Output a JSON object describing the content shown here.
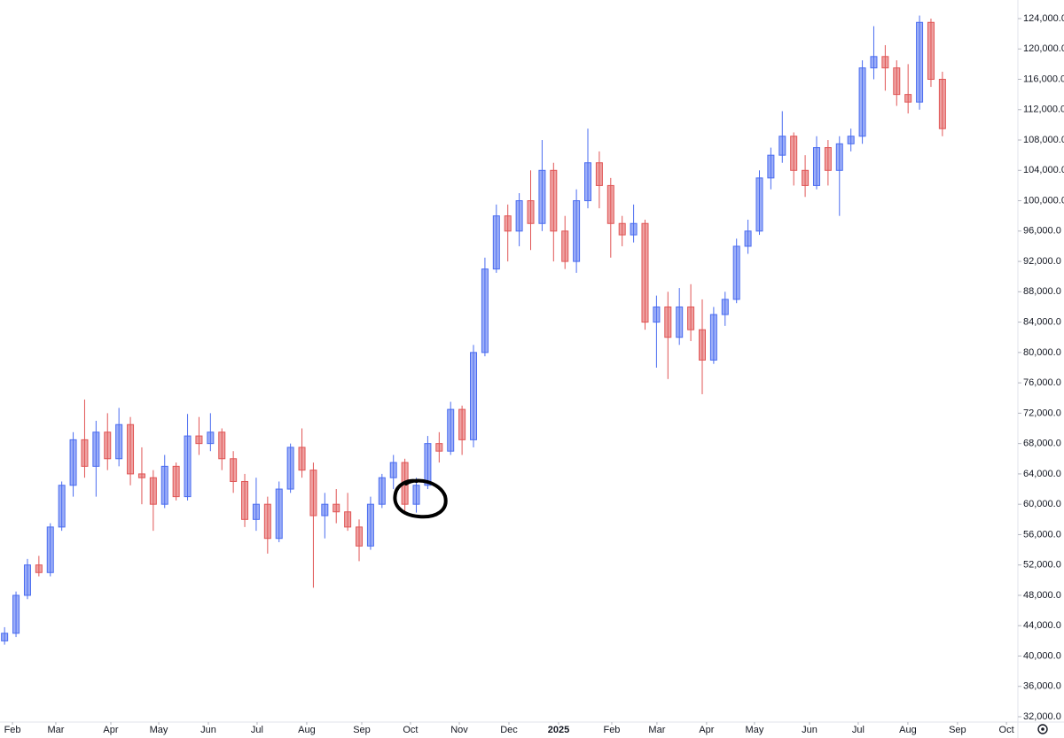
{
  "chart_data": {
    "type": "candlestick",
    "up_color": "#4a6cf0",
    "down_color": "#e05555",
    "xlim": [
      -0.4,
      88.6
    ],
    "ylim": [
      31300,
      126450
    ],
    "xticks": [
      {
        "value": 0.69,
        "label": "Feb"
      },
      {
        "value": 4.48,
        "label": "Mar"
      },
      {
        "value": 9.29,
        "label": "Apr"
      },
      {
        "value": 13.48,
        "label": "May"
      },
      {
        "value": 17.82,
        "label": "Jun"
      },
      {
        "value": 22.08,
        "label": "Jul"
      },
      {
        "value": 26.42,
        "label": "Aug"
      },
      {
        "value": 31.23,
        "label": "Sep"
      },
      {
        "value": 35.49,
        "label": "Oct"
      },
      {
        "value": 39.76,
        "label": "Nov"
      },
      {
        "value": 44.1,
        "label": "Dec"
      },
      {
        "value": 48.44,
        "label": "2025"
      },
      {
        "value": 53.09,
        "label": "Feb"
      },
      {
        "value": 57.04,
        "label": "Mar"
      },
      {
        "value": 61.38,
        "label": "Apr"
      },
      {
        "value": 65.57,
        "label": "May"
      },
      {
        "value": 70.38,
        "label": "Jun"
      },
      {
        "value": 74.64,
        "label": "Jul"
      },
      {
        "value": 78.98,
        "label": "Aug"
      },
      {
        "value": 83.32,
        "label": "Sep"
      },
      {
        "value": 87.6,
        "label": "Oct"
      }
    ],
    "yticks": [
      {
        "value": 32000,
        "label": "32,000.0"
      },
      {
        "value": 36000,
        "label": "36,000.0"
      },
      {
        "value": 40000,
        "label": "40,000.0"
      },
      {
        "value": 44000,
        "label": "44,000.0"
      },
      {
        "value": 48000,
        "label": "48,000.0"
      },
      {
        "value": 52000,
        "label": "52,000.0"
      },
      {
        "value": 56000,
        "label": "56,000.0"
      },
      {
        "value": 60000,
        "label": "60,000.0"
      },
      {
        "value": 64000,
        "label": "64,000.0"
      },
      {
        "value": 68000,
        "label": "68,000.0"
      },
      {
        "value": 72000,
        "label": "72,000.0"
      },
      {
        "value": 76000,
        "label": "76,000.0"
      },
      {
        "value": 80000,
        "label": "80,000.0"
      },
      {
        "value": 84000,
        "label": "84,000.0"
      },
      {
        "value": 88000,
        "label": "88,000.0"
      },
      {
        "value": 92000,
        "label": "92,000.0"
      },
      {
        "value": 96000,
        "label": "96,000.0"
      },
      {
        "value": 100000,
        "label": "100,000.0"
      },
      {
        "value": 104000,
        "label": "104,000.0"
      },
      {
        "value": 108000,
        "label": "108,000.0"
      },
      {
        "value": 112000,
        "label": "112,000.0"
      },
      {
        "value": 116000,
        "label": "116,000.0"
      },
      {
        "value": 120000,
        "label": "120,000.0"
      },
      {
        "value": 124000,
        "label": "124,000.0"
      }
    ],
    "x": [
      0,
      1,
      2,
      3,
      4,
      5,
      6,
      7,
      8,
      9,
      10,
      11,
      12,
      13,
      14,
      15,
      16,
      17,
      18,
      19,
      20,
      21,
      22,
      23,
      24,
      25,
      26,
      27,
      28,
      29,
      30,
      31,
      32,
      33,
      34,
      35,
      36,
      37,
      38,
      39,
      40,
      41,
      42,
      43,
      44,
      45,
      46,
      47,
      48,
      49,
      50,
      51,
      52,
      53,
      54,
      55,
      56,
      57,
      58,
      59,
      60,
      61,
      62,
      63,
      64,
      65,
      66,
      67,
      68,
      69,
      70,
      71,
      72,
      73,
      74,
      75,
      76,
      77,
      78,
      79,
      80,
      81,
      82
    ],
    "open": [
      42000,
      43000,
      48000,
      52000,
      51000,
      57000,
      62500,
      68500,
      65000,
      69500,
      66000,
      70500,
      64000,
      63500,
      60000,
      65000,
      61000,
      69000,
      68000,
      69500,
      66000,
      63000,
      58000,
      60000,
      55500,
      62000,
      67500,
      64500,
      58500,
      60000,
      59000,
      57000,
      54500,
      60000,
      63500,
      65500,
      60000,
      62500,
      68000,
      67000,
      72500,
      68500,
      80000,
      91000,
      98000,
      96000,
      100000,
      97000,
      104000,
      96000,
      92000,
      100000,
      105000,
      102000,
      97000,
      95500,
      97000,
      84000,
      86000,
      82000,
      86000,
      83000,
      79000,
      85000,
      87000,
      94000,
      96000,
      103000,
      106000,
      108500,
      104000,
      102000,
      107000,
      104000,
      107500,
      108500,
      117500,
      119000,
      117500,
      114000,
      113000,
      123500,
      116000
    ],
    "high": [
      43800,
      48500,
      52800,
      53200,
      57500,
      63000,
      69500,
      73800,
      71000,
      72000,
      72700,
      71500,
      67500,
      64500,
      66500,
      65500,
      71900,
      71500,
      72000,
      70000,
      67000,
      64000,
      63500,
      61000,
      63000,
      68000,
      70000,
      65500,
      61500,
      62000,
      61500,
      58000,
      61000,
      64000,
      66500,
      66000,
      63500,
      69000,
      69500,
      73500,
      73000,
      81000,
      92500,
      99500,
      99500,
      101000,
      104000,
      108000,
      105000,
      98000,
      101500,
      109500,
      106500,
      103000,
      98000,
      99500,
      97500,
      87500,
      88000,
      88500,
      89000,
      87000,
      86000,
      88000,
      95000,
      97500,
      104000,
      107000,
      111800,
      109000,
      106000,
      108500,
      108000,
      108500,
      109500,
      118500,
      123000,
      120500,
      118500,
      118000,
      124400,
      124000,
      117000
    ],
    "low": [
      41500,
      42500,
      47500,
      50500,
      50500,
      56500,
      61000,
      63500,
      61000,
      64500,
      65000,
      62500,
      60000,
      56500,
      59500,
      60500,
      60500,
      66500,
      67000,
      64500,
      61500,
      57000,
      56500,
      53500,
      55000,
      61500,
      63500,
      49000,
      55500,
      57500,
      56500,
      52500,
      54000,
      59500,
      62000,
      58900,
      58900,
      62000,
      65500,
      66500,
      66500,
      67500,
      79500,
      90500,
      92000,
      94000,
      93500,
      96000,
      92000,
      91000,
      90500,
      99000,
      99000,
      92500,
      94000,
      94500,
      83000,
      78000,
      76500,
      81000,
      81500,
      74500,
      78500,
      83500,
      86500,
      93000,
      95500,
      101500,
      105000,
      102000,
      100500,
      101500,
      102000,
      98000,
      106500,
      107500,
      116000,
      114500,
      112500,
      111500,
      112000,
      115000,
      108500
    ],
    "close": [
      43000,
      48000,
      52000,
      51000,
      57000,
      62500,
      68500,
      65000,
      69500,
      66000,
      70500,
      64000,
      63500,
      60000,
      65000,
      61000,
      69000,
      68000,
      69500,
      66000,
      63000,
      58000,
      60000,
      55500,
      62000,
      67500,
      64500,
      58500,
      60000,
      59000,
      57000,
      54500,
      60000,
      63500,
      65500,
      60000,
      62500,
      68000,
      67000,
      72500,
      68500,
      80000,
      91000,
      98000,
      96000,
      100000,
      97000,
      104000,
      96000,
      92000,
      100000,
      105000,
      102000,
      97000,
      95500,
      97000,
      84000,
      86000,
      82000,
      86000,
      83000,
      79000,
      85000,
      87000,
      94000,
      96000,
      103000,
      106000,
      108500,
      104000,
      102000,
      107000,
      104000,
      107500,
      108500,
      117500,
      119000,
      117500,
      114000,
      113000,
      123500,
      116000,
      109500
    ]
  }
}
